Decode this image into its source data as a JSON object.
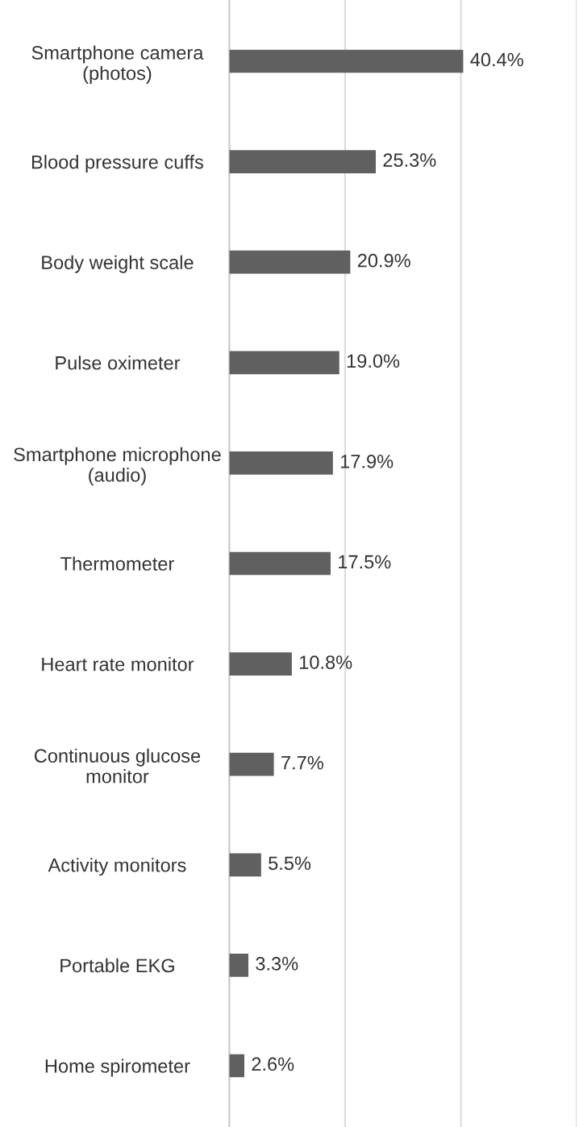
{
  "chart_data": {
    "type": "bar",
    "orientation": "horizontal",
    "categories": [
      "Smartphone camera\n(photos)",
      "Blood pressure cuffs",
      "Body weight scale",
      "Pulse oximeter",
      "Smartphone microphone\n(audio)",
      "Thermometer",
      "Heart rate monitor",
      "Continuous glucose\nmonitor",
      "Activity monitors",
      "Portable EKG",
      "Home spirometer"
    ],
    "values": [
      40.4,
      25.3,
      20.9,
      19.0,
      17.9,
      17.5,
      10.8,
      7.7,
      5.5,
      3.3,
      2.6
    ],
    "value_labels": [
      "40.4%",
      "25.3%",
      "20.9%",
      "19.0%",
      "17.9%",
      "17.5%",
      "10.8%",
      "7.7%",
      "5.5%",
      "3.3%",
      "2.6%"
    ],
    "color": "#606060",
    "xlim": [
      0,
      60
    ],
    "xticks": [
      {
        "value": 0,
        "label": null
      },
      {
        "value": 20,
        "label": null
      },
      {
        "value": 40,
        "label": null
      },
      {
        "value": 60,
        "label": null
      }
    ],
    "tick_labels": "y",
    "grid": "x",
    "legend": false
  }
}
